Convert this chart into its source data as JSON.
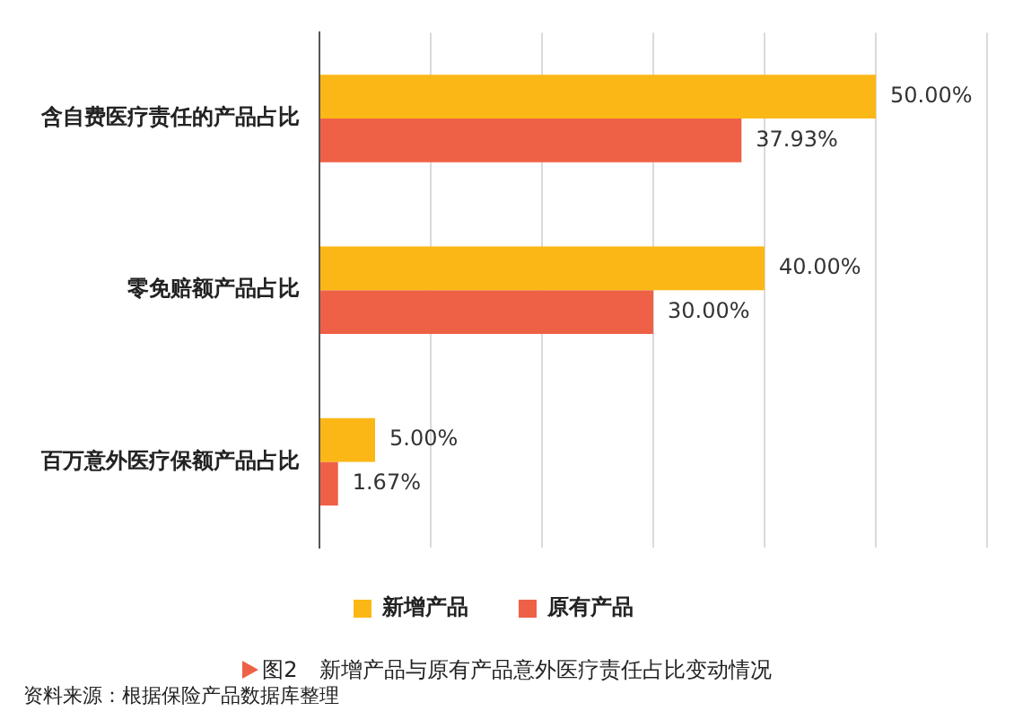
{
  "chart_data": {
    "type": "bar",
    "orientation": "horizontal",
    "title": "图2　新增产品与原有产品意外医疗责任占比变动情况",
    "annotations": [
      "资料来源：根据保险产品数据库整理"
    ],
    "categories": [
      "含自费医疗责任的产品占比",
      "零免赔额产品占比",
      "百万意外医疗保额产品占比"
    ],
    "series": [
      {
        "name": "新增产品",
        "color": "#fbb715",
        "values": [
          50,
          40,
          5
        ],
        "value_labels": [
          "50.00%",
          "40.00%",
          "5.00%"
        ]
      },
      {
        "name": "原有产品",
        "color": "#ef6146",
        "values": [
          37.93,
          30,
          1.67
        ],
        "value_labels": [
          "37.93%",
          "30.00%",
          "1.67%"
        ]
      }
    ],
    "xlim": [
      0,
      60
    ],
    "xticks": [
      {
        "value": 0,
        "label": null
      },
      {
        "value": 10,
        "label": null
      },
      {
        "value": 20,
        "label": null
      },
      {
        "value": 30,
        "label": null
      },
      {
        "value": 40,
        "label": null
      },
      {
        "value": 50,
        "label": null
      },
      {
        "value": 60,
        "label": null
      }
    ],
    "grid": "x",
    "legend": "bottom",
    "tick_labels": "y"
  }
}
